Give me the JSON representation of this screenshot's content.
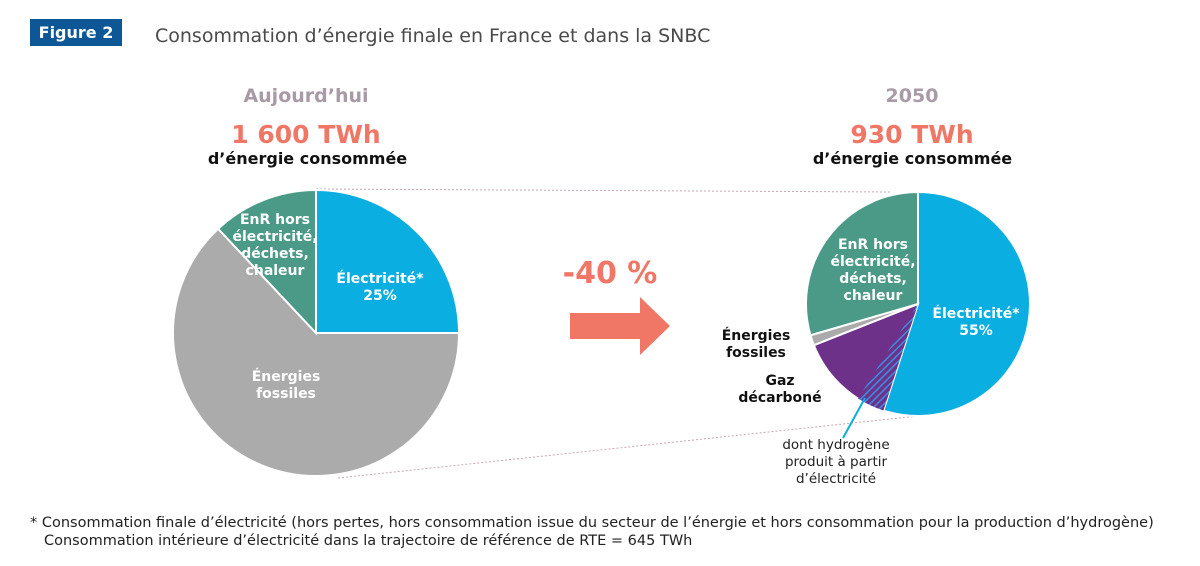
{
  "figure_label": "Figure 2",
  "title": "Consommation d’énergie finale en France et dans la SNBC",
  "change_label": "-40 %",
  "footnote": [
    "* Consommation finale d’électricité (hors pertes, hors consommation issue du secteur de l’énergie et hors consommation pour la production d’hydrogène)",
    "Consommation intérieure d’électricité dans la trajectoire de référence de RTE = 645 TWh"
  ],
  "chart_data": [
    {
      "type": "pie",
      "period": "Aujourd’hui",
      "total": "1 600 TWh",
      "total_caption": "d’énergie consommée",
      "slices": [
        {
          "label": [
            "Électricité*",
            "25%"
          ],
          "value": 25,
          "color": "#0aaee0"
        },
        {
          "label": [
            "Énergies",
            "fossiles"
          ],
          "value": 63,
          "color": "#ababab"
        },
        {
          "label": [
            "EnR hors",
            "électricité,",
            "déchets,",
            "chaleur"
          ],
          "value": 12,
          "color": "#4a9a87"
        }
      ]
    },
    {
      "type": "pie",
      "period": "2050",
      "total": "930 TWh",
      "total_caption": "d’énergie consommée",
      "slices": [
        {
          "label": [
            "Électricité*",
            "55%"
          ],
          "value": 55,
          "color": "#0aaee0"
        },
        {
          "label": [
            "Gaz",
            "décarboné"
          ],
          "value": 14,
          "color": "#6e3189",
          "subslice": {
            "label": [
              "dont hydrogène",
              "produit à partir",
              "d’électricité"
            ],
            "value": 4,
            "color": "#3a7fd0"
          }
        },
        {
          "label": [
            "Énergies",
            "fossiles"
          ],
          "value": 1.5,
          "color": "#ababab"
        },
        {
          "label": [
            "EnR hors",
            "électricité,",
            "déchets,",
            "chaleur"
          ],
          "value": 29.5,
          "color": "#4a9a87"
        }
      ]
    }
  ]
}
